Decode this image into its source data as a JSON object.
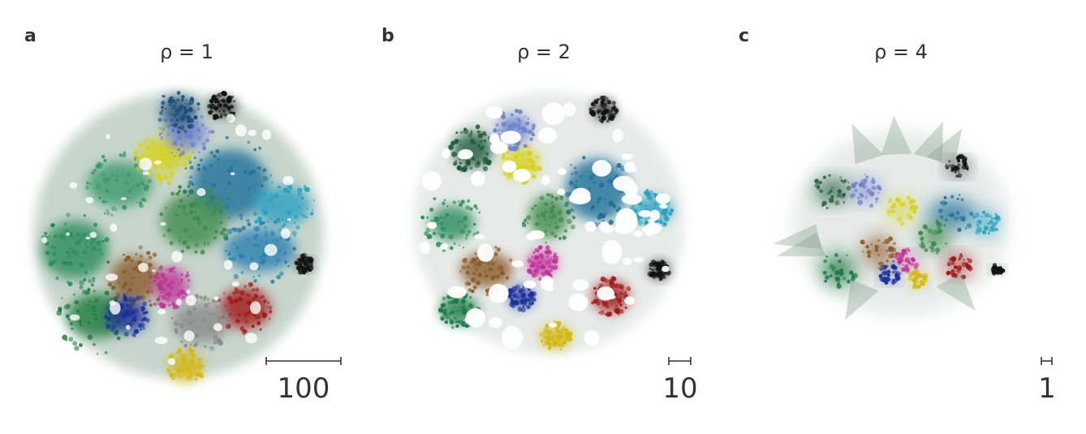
{
  "chart_data": [
    {
      "type": "scatter",
      "panel": "a",
      "title": "ρ = 1",
      "scale_bar_label": "100",
      "scale_bar_value": 100,
      "shape": "round",
      "clusters": [
        {
          "color": "#1f7a3c",
          "x": -0.55,
          "y": 0.55,
          "size": 0.22
        },
        {
          "color": "#2a8c5a",
          "x": -0.7,
          "y": 0.1,
          "size": 0.2
        },
        {
          "color": "#3a9a6a",
          "x": -0.4,
          "y": -0.35,
          "size": 0.18
        },
        {
          "color": "#d6d21e",
          "x": -0.1,
          "y": -0.55,
          "size": 0.16
        },
        {
          "color": "#6f82cc",
          "x": 0.05,
          "y": -0.7,
          "size": 0.15
        },
        {
          "color": "#1c4f7a",
          "x": 0.0,
          "y": -0.85,
          "size": 0.12
        },
        {
          "color": "#1f6f99",
          "x": 0.35,
          "y": -0.35,
          "size": 0.26
        },
        {
          "color": "#2aa0c0",
          "x": 0.7,
          "y": -0.2,
          "size": 0.18
        },
        {
          "color": "#2b7fb0",
          "x": 0.55,
          "y": 0.1,
          "size": 0.2
        },
        {
          "color": "#8a5a2a",
          "x": -0.3,
          "y": 0.3,
          "size": 0.18
        },
        {
          "color": "#c0309a",
          "x": -0.05,
          "y": 0.35,
          "size": 0.12
        },
        {
          "color": "#1a2f9a",
          "x": -0.35,
          "y": 0.55,
          "size": 0.12
        },
        {
          "color": "#a01818",
          "x": 0.45,
          "y": 0.5,
          "size": 0.15
        },
        {
          "color": "#d4b812",
          "x": 0.05,
          "y": 0.9,
          "size": 0.1
        },
        {
          "color": "#8a8a8a",
          "x": 0.15,
          "y": 0.6,
          "size": 0.16
        },
        {
          "color": "#3f8a4c",
          "x": 0.1,
          "y": -0.1,
          "size": 0.2
        },
        {
          "color": "#111111",
          "x": 0.3,
          "y": -0.88,
          "size": 0.08
        },
        {
          "color": "#111111",
          "x": 0.85,
          "y": 0.2,
          "size": 0.05
        }
      ]
    },
    {
      "type": "scatter",
      "panel": "b",
      "title": "ρ = 2",
      "scale_bar_label": "10",
      "scale_bar_value": 10,
      "shape": "fragmented",
      "clusters": [
        {
          "color": "#1f5a3a",
          "x": -0.55,
          "y": -0.55,
          "size": 0.14
        },
        {
          "color": "#2a8c5a",
          "x": -0.7,
          "y": 0.0,
          "size": 0.18
        },
        {
          "color": "#d6d21e",
          "x": -0.2,
          "y": -0.45,
          "size": 0.12
        },
        {
          "color": "#6f82cc",
          "x": -0.25,
          "y": -0.7,
          "size": 0.12
        },
        {
          "color": "#1f6f99",
          "x": 0.35,
          "y": -0.25,
          "size": 0.22
        },
        {
          "color": "#2aa0c0",
          "x": 0.75,
          "y": -0.1,
          "size": 0.12
        },
        {
          "color": "#8a5a2a",
          "x": -0.45,
          "y": 0.35,
          "size": 0.16
        },
        {
          "color": "#c0309a",
          "x": -0.05,
          "y": 0.3,
          "size": 0.1
        },
        {
          "color": "#1a2f9a",
          "x": -0.2,
          "y": 0.55,
          "size": 0.08
        },
        {
          "color": "#a01818",
          "x": 0.45,
          "y": 0.55,
          "size": 0.12
        },
        {
          "color": "#d4b812",
          "x": 0.05,
          "y": 0.85,
          "size": 0.09
        },
        {
          "color": "#1d7a46",
          "x": -0.65,
          "y": 0.65,
          "size": 0.12
        },
        {
          "color": "#111111",
          "x": 0.4,
          "y": -0.85,
          "size": 0.08
        },
        {
          "color": "#111111",
          "x": 0.8,
          "y": 0.35,
          "size": 0.06
        },
        {
          "color": "#3f8a4c",
          "x": 0.0,
          "y": -0.05,
          "size": 0.16
        }
      ]
    },
    {
      "type": "scatter",
      "panel": "c",
      "title": "ρ = 4",
      "scale_bar_label": "1",
      "scale_bar_value": 1,
      "shape": "compact",
      "clusters": [
        {
          "color": "#1f5a3a",
          "x": -0.6,
          "y": -0.35,
          "size": 0.16
        },
        {
          "color": "#6f82cc",
          "x": -0.3,
          "y": -0.35,
          "size": 0.14
        },
        {
          "color": "#d6d21e",
          "x": 0.0,
          "y": -0.15,
          "size": 0.13
        },
        {
          "color": "#1f6f99",
          "x": 0.45,
          "y": -0.1,
          "size": 0.2
        },
        {
          "color": "#2aa0c0",
          "x": 0.75,
          "y": 0.0,
          "size": 0.12
        },
        {
          "color": "#111111",
          "x": 0.5,
          "y": -0.6,
          "size": 0.1
        },
        {
          "color": "#8a5a2a",
          "x": -0.2,
          "y": 0.3,
          "size": 0.16
        },
        {
          "color": "#c0309a",
          "x": 0.05,
          "y": 0.4,
          "size": 0.1
        },
        {
          "color": "#1d7a46",
          "x": -0.55,
          "y": 0.5,
          "size": 0.16
        },
        {
          "color": "#1a2f9a",
          "x": -0.1,
          "y": 0.55,
          "size": 0.08
        },
        {
          "color": "#d4b812",
          "x": 0.15,
          "y": 0.6,
          "size": 0.08
        },
        {
          "color": "#a01818",
          "x": 0.5,
          "y": 0.45,
          "size": 0.12
        },
        {
          "color": "#3f8a4c",
          "x": 0.3,
          "y": 0.15,
          "size": 0.14
        },
        {
          "color": "#111111",
          "x": 0.85,
          "y": 0.5,
          "size": 0.05
        }
      ]
    }
  ]
}
